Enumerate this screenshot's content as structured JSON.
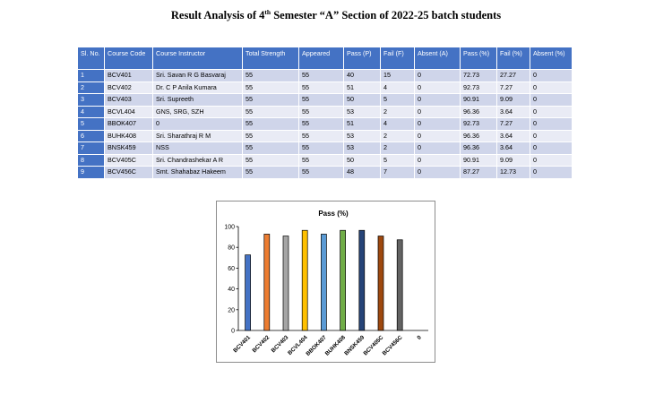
{
  "title": {
    "prefix": "Result Analysis of 4",
    "sup": "th",
    "suffix": " Semester “A” Section of 2022-25 batch students"
  },
  "table": {
    "headers": [
      "Sl. No.",
      "Course Code",
      "Course Instructor",
      "Total Strength",
      "Appeared",
      "Pass (P)",
      "Fail (F)",
      "Absent (A)",
      "Pass (%)",
      "Fail (%)",
      "Absent (%)"
    ],
    "rows": [
      [
        "1",
        "BCV401",
        "Sri. Savan R G Basvaraj",
        "55",
        "55",
        "40",
        "15",
        "0",
        "72.73",
        "27.27",
        "0"
      ],
      [
        "2",
        "BCV402",
        "Dr. C P Anila Kumara",
        "55",
        "55",
        "51",
        "4",
        "0",
        "92.73",
        "7.27",
        "0"
      ],
      [
        "3",
        "BCV403",
        "Sri. Supreeth",
        "55",
        "55",
        "50",
        "5",
        "0",
        "90.91",
        "9.09",
        "0"
      ],
      [
        "4",
        "BCVL404",
        "GNS, SRG, SZH",
        "55",
        "55",
        "53",
        "2",
        "0",
        "96.36",
        "3.64",
        "0"
      ],
      [
        "5",
        "BBOK407",
        "0",
        "55",
        "55",
        "51",
        "4",
        "0",
        "92.73",
        "7.27",
        "0"
      ],
      [
        "6",
        "BUHK408",
        "Sri. Sharathraj R M",
        "55",
        "55",
        "53",
        "2",
        "0",
        "96.36",
        "3.64",
        "0"
      ],
      [
        "7",
        "BNSK459",
        "NSS",
        "55",
        "55",
        "53",
        "2",
        "0",
        "96.36",
        "3.64",
        "0"
      ],
      [
        "8",
        "BCV405C",
        "Sri. Chandrashekar A R",
        "55",
        "55",
        "50",
        "5",
        "0",
        "90.91",
        "9.09",
        "0"
      ],
      [
        "9",
        "BCV456C",
        "Smt. Shahabaz Hakeem",
        "55",
        "55",
        "48",
        "7",
        "0",
        "87.27",
        "12.73",
        "0"
      ]
    ],
    "colors": {
      "header_bg": "#4472c4",
      "row_odd": "#cfd5ea",
      "row_even": "#e9ebf5"
    }
  },
  "chart_data": {
    "type": "bar",
    "title": "Pass (%)",
    "categories": [
      "BCV401",
      "BCV402",
      "BCV403",
      "BCVL404",
      "BBOK407",
      "BUHK408",
      "BNSK459",
      "BCV405C",
      "BCV456C",
      "0"
    ],
    "values": [
      72.73,
      92.73,
      90.91,
      96.36,
      92.73,
      96.36,
      96.36,
      90.91,
      87.27,
      null
    ],
    "colors": [
      "#4472c4",
      "#ed7d31",
      "#a5a5a5",
      "#ffc000",
      "#5b9bd5",
      "#70ad47",
      "#264478",
      "#9e480e",
      "#636363",
      "#997300"
    ],
    "ylim": [
      0,
      100
    ],
    "yticks": [
      0,
      20,
      40,
      60,
      80,
      100
    ],
    "grid": false,
    "legend": "none"
  }
}
